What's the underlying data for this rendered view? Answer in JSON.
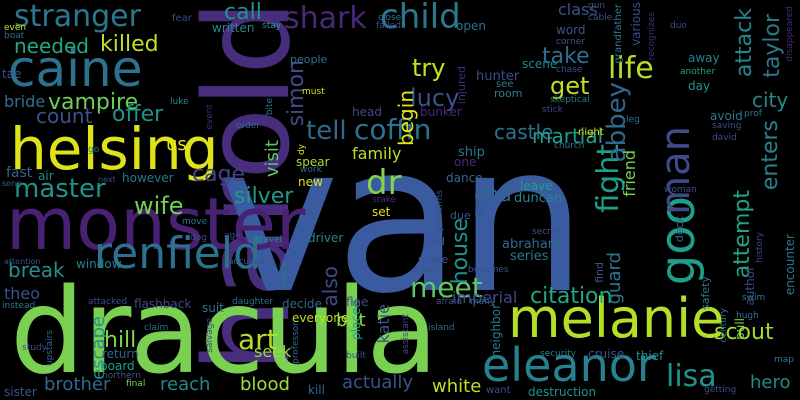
{
  "words": [
    {
      "text": "van",
      "color": "#3b5ba0"
    },
    {
      "text": "harold",
      "color": "#472d7b"
    },
    {
      "text": "dracula",
      "color": "#7ad151"
    },
    {
      "text": "monster",
      "color": "#482173"
    },
    {
      "text": "helsing",
      "color": "#dde318"
    },
    {
      "text": "melanie",
      "color": "#b5de2b"
    },
    {
      "text": "caine",
      "color": "#2c728e"
    },
    {
      "text": "renfield",
      "color": "#2c728e"
    },
    {
      "text": "eleanor",
      "color": "#26828e"
    },
    {
      "text": "goo",
      "color": "#1f9e89"
    },
    {
      "text": "stranger",
      "color": "#2a788e"
    },
    {
      "text": "child",
      "color": "#2a788e"
    },
    {
      "text": "shark",
      "color": "#482878"
    },
    {
      "text": "man",
      "color": "#3e4a89"
    },
    {
      "text": "meet",
      "color": "#5ec962"
    },
    {
      "text": "lisa",
      "color": "#21918c"
    },
    {
      "text": "fight",
      "color": "#1f9e89"
    },
    {
      "text": "master",
      "color": "#21918c"
    },
    {
      "text": "coffin",
      "color": "#2c728e"
    },
    {
      "text": "tell",
      "color": "#31688e"
    },
    {
      "text": "dr",
      "color": "#84d44b"
    },
    {
      "text": "art",
      "color": "#b5de2b"
    },
    {
      "text": "life",
      "color": "#b5de2b"
    },
    {
      "text": "abbey",
      "color": "#31688e"
    },
    {
      "text": "citation",
      "color": "#22a884"
    },
    {
      "text": "vampire",
      "color": "#6ece58"
    },
    {
      "text": "killed",
      "color": "#bddf26"
    },
    {
      "text": "needed",
      "color": "#22a884"
    },
    {
      "text": "simon",
      "color": "#3e4a89"
    },
    {
      "text": "lucy",
      "color": "#3b528b"
    },
    {
      "text": "try",
      "color": "#cae11f"
    },
    {
      "text": "get",
      "color": "#bddf26"
    },
    {
      "text": "take",
      "color": "#2e6e8e"
    },
    {
      "text": "call",
      "color": "#21918c"
    },
    {
      "text": "attack",
      "color": "#25858e"
    },
    {
      "text": "taylor",
      "color": "#2a788e"
    },
    {
      "text": "city",
      "color": "#23898e"
    },
    {
      "text": "count",
      "color": "#3b528b"
    },
    {
      "text": "offer",
      "color": "#21918c"
    },
    {
      "text": "bride",
      "color": "#2e6e8e"
    },
    {
      "text": "break",
      "color": "#21918c"
    },
    {
      "text": "wife",
      "color": "#73d056"
    },
    {
      "text": "silver",
      "color": "#1e9b8a"
    },
    {
      "text": "cage",
      "color": "#414487"
    },
    {
      "text": "castle",
      "color": "#2c728e"
    },
    {
      "text": "martial",
      "color": "#1f9e89"
    },
    {
      "text": "attempt",
      "color": "#20a386"
    },
    {
      "text": "enters",
      "color": "#26828e"
    },
    {
      "text": "house",
      "color": "#21918c"
    },
    {
      "text": "also",
      "color": "#3e4a89"
    },
    {
      "text": "end",
      "color": "#31688e"
    },
    {
      "text": "guard",
      "color": "#2a788e"
    },
    {
      "text": "family",
      "color": "#bddf26"
    },
    {
      "text": "begin",
      "color": "#e5e419"
    },
    {
      "text": "visit",
      "color": "#5ec962"
    },
    {
      "text": "escape",
      "color": "#21918c"
    },
    {
      "text": "theo",
      "color": "#3b528b"
    },
    {
      "text": "imperial",
      "color": "#3e4a89"
    },
    {
      "text": "hill",
      "color": "#84d44b"
    },
    {
      "text": "bat",
      "color": "#90d743"
    },
    {
      "text": "scout",
      "color": "#a2da37"
    },
    {
      "text": "brother",
      "color": "#31688e"
    },
    {
      "text": "reach",
      "color": "#25858e"
    },
    {
      "text": "blood",
      "color": "#a5db36"
    },
    {
      "text": "actually",
      "color": "#3b528b"
    },
    {
      "text": "white",
      "color": "#bddf26"
    },
    {
      "text": "hero",
      "color": "#23898e"
    },
    {
      "text": "us",
      "color": "#e5e419"
    },
    {
      "text": "friend",
      "color": "#7ad151"
    },
    {
      "text": "class",
      "color": "#3b528b"
    },
    {
      "text": "katie",
      "color": "#3b528b"
    },
    {
      "text": "seek",
      "color": "#9bd93c"
    },
    {
      "text": "duncan",
      "color": "#25858e"
    },
    {
      "text": "abraham",
      "color": "#31688e"
    },
    {
      "text": "series",
      "color": "#2a788e"
    },
    {
      "text": "leave",
      "color": "#20a386"
    },
    {
      "text": "ship",
      "color": "#2a788e"
    },
    {
      "text": "dance",
      "color": "#31688e"
    },
    {
      "text": "people",
      "color": "#2c728e"
    },
    {
      "text": "must",
      "color": "#dde318"
    },
    {
      "text": "hunter",
      "color": "#3e4a89"
    },
    {
      "text": "room",
      "color": "#26828e"
    },
    {
      "text": "see",
      "color": "#2a788e"
    },
    {
      "text": "scene",
      "color": "#25858e"
    },
    {
      "text": "chase",
      "color": "#3b528b"
    },
    {
      "text": "night",
      "color": "#dde318"
    },
    {
      "text": "head",
      "color": "#3e4a89"
    },
    {
      "text": "bunker",
      "color": "#482878"
    },
    {
      "text": "fear",
      "color": "#3e4a89"
    },
    {
      "text": "written",
      "color": "#26828e"
    },
    {
      "text": "stay",
      "color": "#1fa187"
    },
    {
      "text": "even",
      "color": "#cae11f"
    },
    {
      "text": "boat",
      "color": "#2e6e8e"
    },
    {
      "text": "tae",
      "color": "#3b528b"
    },
    {
      "text": "luke",
      "color": "#25858e"
    },
    {
      "text": "go",
      "color": "#2a788e"
    },
    {
      "text": "song",
      "color": "#31688e"
    },
    {
      "text": "fast",
      "color": "#33638d"
    },
    {
      "text": "air",
      "color": "#25858e"
    },
    {
      "text": "next",
      "color": "#3e4a89"
    },
    {
      "text": "however",
      "color": "#2a788e"
    },
    {
      "text": "work",
      "color": "#31688e"
    },
    {
      "text": "new",
      "color": "#dde318"
    },
    {
      "text": "spear",
      "color": "#a2da37"
    },
    {
      "text": "dy",
      "color": "#dde318"
    },
    {
      "text": "move",
      "color": "#2c728e"
    },
    {
      "text": "dog",
      "color": "#3e4a89"
    },
    {
      "text": "age",
      "color": "#3e4a89"
    },
    {
      "text": "travel",
      "color": "#21918c"
    },
    {
      "text": "driver",
      "color": "#25858e"
    },
    {
      "text": "stake",
      "color": "#482878"
    },
    {
      "text": "set",
      "color": "#dde318"
    },
    {
      "text": "window",
      "color": "#26828e"
    },
    {
      "text": "attention",
      "color": "#3e4a89"
    },
    {
      "text": "instead",
      "color": "#2a788e"
    },
    {
      "text": "accused",
      "color": "#3b528b"
    },
    {
      "text": "black",
      "color": "#2a788e"
    },
    {
      "text": "flashback",
      "color": "#3e4a89"
    },
    {
      "text": "attacked",
      "color": "#3e4a89"
    },
    {
      "text": "suit",
      "color": "#2a788e"
    },
    {
      "text": "daughter",
      "color": "#2c728e"
    },
    {
      "text": "decide",
      "color": "#31688e"
    },
    {
      "text": "everyone",
      "color": "#bddf26"
    },
    {
      "text": "professor",
      "color": "#31688e"
    },
    {
      "text": "placed",
      "color": "#1fa187"
    },
    {
      "text": "flee",
      "color": "#3e4a89"
    },
    {
      "text": "island",
      "color": "#31688e"
    },
    {
      "text": "afraid",
      "color": "#3b528b"
    },
    {
      "text": "many",
      "color": "#31688e"
    },
    {
      "text": "assistant",
      "color": "#3e4a89"
    },
    {
      "text": "built",
      "color": "#3b528b"
    },
    {
      "text": "claim",
      "color": "#2c728e"
    },
    {
      "text": "salvage",
      "color": "#3e4a89"
    },
    {
      "text": "return",
      "color": "#31688e"
    },
    {
      "text": "board",
      "color": "#1fa187"
    },
    {
      "text": "final",
      "color": "#7ad151"
    },
    {
      "text": "kill",
      "color": "#31688e"
    },
    {
      "text": "destruction",
      "color": "#21918c"
    },
    {
      "text": "want",
      "color": "#3b528b"
    },
    {
      "text": "sister",
      "color": "#3b528b"
    },
    {
      "text": "upstairs",
      "color": "#31688e"
    },
    {
      "text": "northern",
      "color": "#3b528b"
    },
    {
      "text": "study",
      "color": "#3e4a89"
    },
    {
      "text": "neighbor",
      "color": "#2a788e"
    },
    {
      "text": "security",
      "color": "#26828e"
    },
    {
      "text": "cruise",
      "color": "#3b528b"
    },
    {
      "text": "thief",
      "color": "#21918c"
    },
    {
      "text": "getting",
      "color": "#3e4a89"
    },
    {
      "text": "map",
      "color": "#2a788e"
    },
    {
      "text": "swim",
      "color": "#2a788e"
    },
    {
      "text": "hugh",
      "color": "#2c728e"
    },
    {
      "text": "pull",
      "color": "#7ad151"
    },
    {
      "text": "century",
      "color": "#2a788e"
    },
    {
      "text": "author",
      "color": "#3e4a89"
    },
    {
      "text": "history",
      "color": "#3e4a89"
    },
    {
      "text": "encounter",
      "color": "#2a788e"
    },
    {
      "text": "disappeared",
      "color": "#482878"
    },
    {
      "text": "away",
      "color": "#26828e"
    },
    {
      "text": "another",
      "color": "#1fa187"
    },
    {
      "text": "day",
      "color": "#21918c"
    },
    {
      "text": "duo",
      "color": "#3e4a89"
    },
    {
      "text": "gun",
      "color": "#3b528b"
    },
    {
      "text": "cable",
      "color": "#3b528b"
    },
    {
      "text": "close",
      "color": "#2c728e"
    },
    {
      "text": "failed",
      "color": "#3e4a89"
    },
    {
      "text": "corner",
      "color": "#3b528b"
    },
    {
      "text": "word",
      "color": "#3b528b"
    },
    {
      "text": "grandfather",
      "color": "#2a788e"
    },
    {
      "text": "various",
      "color": "#3e4a89"
    },
    {
      "text": "recognizes",
      "color": "#482878"
    },
    {
      "text": "open",
      "color": "#2c728e"
    },
    {
      "text": "injured",
      "color": "#482878"
    },
    {
      "text": "skeptical",
      "color": "#2a788e"
    },
    {
      "text": "stick",
      "color": "#3e4a89"
    },
    {
      "text": "leg",
      "color": "#2a788e"
    },
    {
      "text": "church",
      "color": "#2c728e"
    },
    {
      "text": "david",
      "color": "#3e4a89"
    },
    {
      "text": "saving",
      "color": "#3e4a89"
    },
    {
      "text": "prof",
      "color": "#2a788e"
    },
    {
      "text": "avoid",
      "color": "#2a788e"
    },
    {
      "text": "order",
      "color": "#31688e"
    },
    {
      "text": "event",
      "color": "#482878"
    },
    {
      "text": "bite",
      "color": "#2a788e"
    },
    {
      "text": "woman",
      "color": "#3b528b"
    },
    {
      "text": "dock",
      "color": "#31688e"
    },
    {
      "text": "safety",
      "color": "#2a788e"
    },
    {
      "text": "find",
      "color": "#3b528b"
    },
    {
      "text": "secret",
      "color": "#3b528b"
    },
    {
      "text": "led",
      "color": "#3b528b"
    },
    {
      "text": "make",
      "color": "#3b528b"
    },
    {
      "text": "soon",
      "color": "#3b528b"
    },
    {
      "text": "becomes",
      "color": "#3b528b"
    },
    {
      "text": "due",
      "color": "#3b528b"
    },
    {
      "text": "performs",
      "color": "#3b528b"
    },
    {
      "text": "film",
      "color": "#3b528b"
    },
    {
      "text": "one",
      "color": "#482878"
    }
  ]
}
